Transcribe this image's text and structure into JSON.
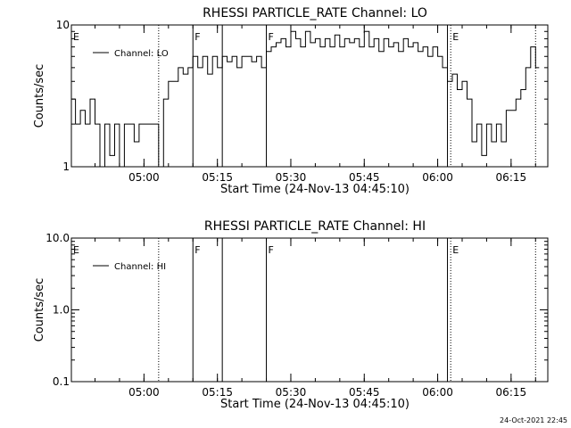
{
  "chart_data": [
    {
      "type": "line",
      "title": "RHESSI PARTICLE_RATE Channel: LO",
      "xlabel": "Start Time (24-Nov-13 04:45:10)",
      "ylabel": "Counts/sec",
      "yscale": "log",
      "ylim": [
        1,
        10
      ],
      "xlim": [
        "04:45:10",
        "06:22:30"
      ],
      "x_ticks": [
        "05:00",
        "05:15",
        "05:30",
        "05:45",
        "06:00",
        "06:15"
      ],
      "y_ticks": [
        "1",
        "10"
      ],
      "legend": "Channel: LO",
      "legend_position": "top-left",
      "markers": [
        {
          "time": "04:45:10",
          "label": "E",
          "style": "none"
        },
        {
          "time": "05:03",
          "label": "",
          "style": "dotted"
        },
        {
          "time": "05:10",
          "label": "F",
          "style": "solid"
        },
        {
          "time": "05:16",
          "label": "",
          "style": "solid"
        },
        {
          "time": "05:25",
          "label": "F",
          "style": "solid"
        },
        {
          "time": "06:02",
          "label": "",
          "style": "solid"
        },
        {
          "time": "06:02:40",
          "label": "E",
          "style": "dotted"
        },
        {
          "time": "06:20",
          "label": "",
          "style": "dotted"
        }
      ],
      "series": [
        {
          "name": "Channel: LO",
          "x": [
            "04:45:10",
            "04:46:00",
            "04:47:00",
            "04:48:00",
            "04:49:00",
            "04:50:00",
            "04:51:00",
            "04:52:00",
            "04:53:00",
            "04:54:00",
            "04:55:00",
            "04:56:00",
            "04:57:00",
            "04:58:00",
            "04:59:00",
            "05:00:00",
            "05:01:00",
            "05:02:00",
            "05:03:00",
            "05:04:00",
            "05:05:00",
            "05:06:00",
            "05:07:00",
            "05:08:00",
            "05:09:00",
            "05:10:00",
            "05:11:00",
            "05:12:00",
            "05:13:00",
            "05:14:00",
            "05:15:00",
            "05:16:00",
            "05:17:00",
            "05:18:00",
            "05:19:00",
            "05:20:00",
            "05:21:00",
            "05:22:00",
            "05:23:00",
            "05:24:00",
            "05:25:00",
            "05:26:00",
            "05:27:00",
            "05:28:00",
            "05:29:00",
            "05:30:00",
            "05:31:00",
            "05:32:00",
            "05:33:00",
            "05:34:00",
            "05:35:00",
            "05:36:00",
            "05:37:00",
            "05:38:00",
            "05:39:00",
            "05:40:00",
            "05:41:00",
            "05:42:00",
            "05:43:00",
            "05:44:00",
            "05:45:00",
            "05:46:00",
            "05:47:00",
            "05:48:00",
            "05:49:00",
            "05:50:00",
            "05:51:00",
            "05:52:00",
            "05:53:00",
            "05:54:00",
            "05:55:00",
            "05:56:00",
            "05:57:00",
            "05:58:00",
            "05:59:00",
            "06:00:00",
            "06:01:00",
            "06:02:00",
            "06:03:00",
            "06:04:00",
            "06:05:00",
            "06:06:00",
            "06:07:00",
            "06:08:00",
            "06:09:00",
            "06:10:00",
            "06:11:00",
            "06:12:00",
            "06:13:00",
            "06:14:00",
            "06:15:00",
            "06:16:00",
            "06:17:00",
            "06:18:00",
            "06:19:00",
            "06:20:00"
          ],
          "values": [
            3,
            2,
            2.5,
            2,
            3,
            2,
            1,
            2,
            1.2,
            2,
            1,
            2,
            2,
            1.5,
            2,
            2,
            2,
            2,
            1,
            3,
            4,
            4,
            5,
            4.5,
            5,
            6,
            5,
            6,
            4.5,
            6,
            5,
            6,
            5.5,
            6,
            5,
            6,
            6,
            5.5,
            6,
            5,
            6.5,
            7,
            7.5,
            8,
            7,
            9,
            8,
            7,
            9,
            7.5,
            8,
            7,
            8,
            7,
            8.5,
            7,
            8,
            7.5,
            8,
            7,
            9,
            7,
            8,
            6.5,
            8,
            7,
            7.5,
            6.5,
            8,
            7,
            7.5,
            6.5,
            7,
            6,
            7,
            6,
            5,
            4,
            4.5,
            3.5,
            4,
            3,
            1.5,
            2,
            1.2,
            2,
            1.5,
            2,
            1.5,
            2.5,
            2.5,
            3,
            3.5,
            5,
            7,
            5
          ]
        }
      ]
    },
    {
      "type": "line",
      "title": "RHESSI PARTICLE_RATE Channel: HI",
      "xlabel": "Start Time (24-Nov-13 04:45:10)",
      "ylabel": "Counts/sec",
      "yscale": "log",
      "ylim": [
        0.1,
        10
      ],
      "xlim": [
        "04:45:10",
        "06:22:30"
      ],
      "x_ticks": [
        "05:00",
        "05:15",
        "05:30",
        "05:45",
        "06:00",
        "06:15"
      ],
      "y_ticks": [
        "0.1",
        "1.0",
        "10.0"
      ],
      "legend": "Channel: HI",
      "legend_position": "top-left",
      "markers": [
        {
          "time": "04:45:10",
          "label": "E",
          "style": "none"
        },
        {
          "time": "05:03",
          "label": "",
          "style": "dotted"
        },
        {
          "time": "05:10",
          "label": "F",
          "style": "solid"
        },
        {
          "time": "05:16",
          "label": "",
          "style": "solid"
        },
        {
          "time": "05:25",
          "label": "F",
          "style": "solid"
        },
        {
          "time": "06:02",
          "label": "",
          "style": "solid"
        },
        {
          "time": "06:02:40",
          "label": "E",
          "style": "dotted"
        },
        {
          "time": "06:20",
          "label": "",
          "style": "dotted"
        }
      ],
      "series": [
        {
          "name": "Channel: HI",
          "x": [],
          "values": []
        }
      ]
    }
  ],
  "footer_stamp": "24-Oct-2021 22:45"
}
